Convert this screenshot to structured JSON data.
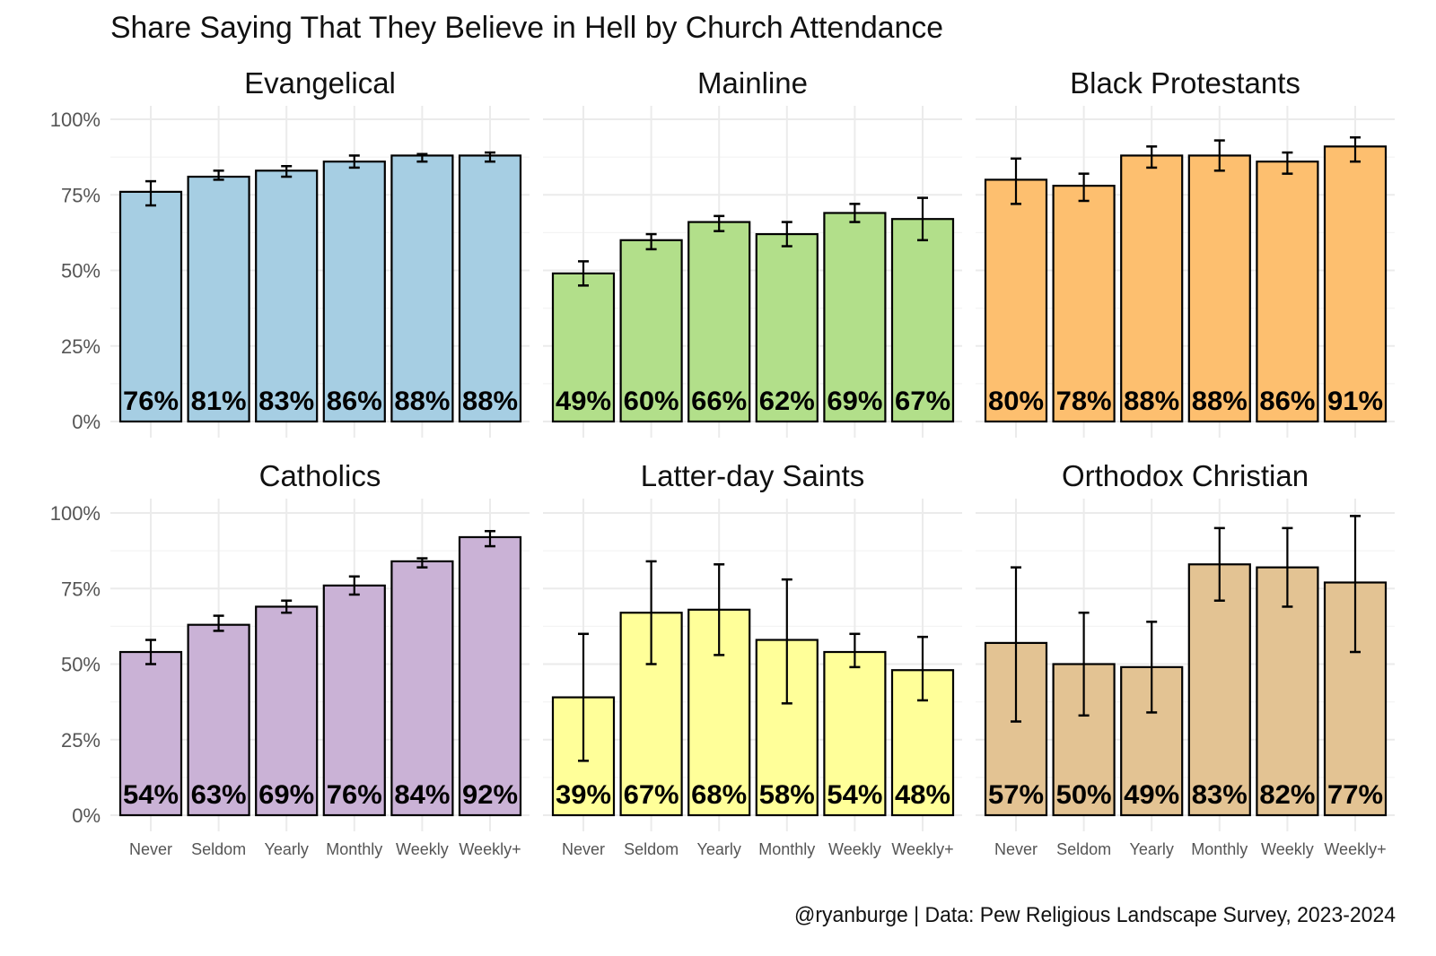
{
  "chart_data": {
    "type": "bar",
    "title": "Share Saying That They Believe in Hell by Church Attendance",
    "caption": "@ryanburge | Data: Pew Religious Landscape Survey, 2023-2024",
    "categories": [
      "Never",
      "Seldom",
      "Yearly",
      "Monthly",
      "Weekly",
      "Weekly+"
    ],
    "ylim": [
      0,
      100
    ],
    "yticks": [
      0,
      25,
      50,
      75,
      100
    ],
    "ytick_labels": [
      "0%",
      "25%",
      "50%",
      "75%",
      "100%"
    ],
    "grid": true,
    "panels": [
      {
        "name": "Evangelical",
        "color": "#a6cee3",
        "values": [
          76,
          81,
          83,
          86,
          88,
          88
        ],
        "labels": [
          "76%",
          "81%",
          "83%",
          "86%",
          "88%",
          "88%"
        ],
        "lower": [
          71.5,
          80,
          81,
          84,
          86,
          86
        ],
        "upper": [
          79.5,
          83,
          84.5,
          88,
          88.5,
          89
        ]
      },
      {
        "name": "Mainline",
        "color": "#b2df8a",
        "values": [
          49,
          60,
          66,
          62,
          69,
          67
        ],
        "labels": [
          "49%",
          "60%",
          "66%",
          "62%",
          "69%",
          "67%"
        ],
        "lower": [
          45,
          57,
          63,
          58,
          66,
          60
        ],
        "upper": [
          53,
          62,
          68,
          66,
          72,
          74
        ]
      },
      {
        "name": "Black Protestants",
        "color": "#fdbf6f",
        "values": [
          80,
          78,
          88,
          88,
          86,
          91
        ],
        "labels": [
          "80%",
          "78%",
          "88%",
          "88%",
          "86%",
          "91%"
        ],
        "lower": [
          72,
          73,
          84,
          83,
          82,
          86
        ],
        "upper": [
          87,
          82,
          91,
          93,
          89,
          94
        ]
      },
      {
        "name": "Catholics",
        "color": "#cab2d6",
        "values": [
          54,
          63,
          69,
          76,
          84,
          92
        ],
        "labels": [
          "54%",
          "63%",
          "69%",
          "76%",
          "84%",
          "92%"
        ],
        "lower": [
          50,
          61,
          67,
          73,
          82,
          89
        ],
        "upper": [
          58,
          66,
          71,
          79,
          85,
          94
        ]
      },
      {
        "name": "Latter-day Saints",
        "color": "#ffff99",
        "values": [
          39,
          67,
          68,
          58,
          54,
          48
        ],
        "labels": [
          "39%",
          "67%",
          "68%",
          "58%",
          "54%",
          "48%"
        ],
        "lower": [
          18,
          50,
          53,
          37,
          49,
          38
        ],
        "upper": [
          60,
          84,
          83,
          78,
          60,
          59
        ]
      },
      {
        "name": "Orthodox Christian",
        "color": "#e3c393",
        "values": [
          57,
          50,
          49,
          83,
          82,
          77
        ],
        "labels": [
          "57%",
          "50%",
          "49%",
          "83%",
          "82%",
          "77%"
        ],
        "lower": [
          31,
          33,
          34,
          71,
          69,
          54
        ],
        "upper": [
          82,
          67,
          64,
          95,
          95,
          99
        ]
      }
    ]
  }
}
